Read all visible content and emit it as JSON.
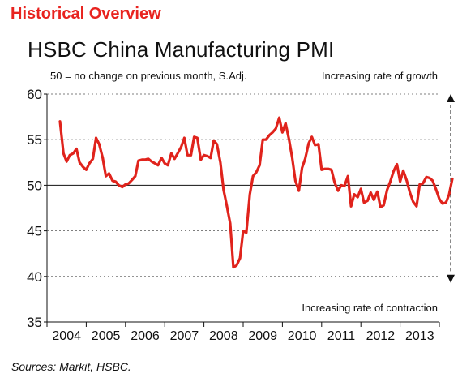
{
  "header": "Historical Overview",
  "chart_data": {
    "type": "line",
    "title": "HSBC China Manufacturing PMI",
    "note_left": "50 = no change on previous month, S.Adj.",
    "note_top_right": "Increasing rate of growth",
    "note_bottom_right": "Increasing rate of contraction",
    "source": "Sources: Markit, HSBC.",
    "ylim": [
      35,
      60
    ],
    "yticks": [
      35,
      40,
      45,
      50,
      55,
      60
    ],
    "xlim": [
      2004.0,
      2014.0
    ],
    "xtick_labels": [
      "2004",
      "2005",
      "2006",
      "2007",
      "2008",
      "2009",
      "2010",
      "2011",
      "2012",
      "2013"
    ],
    "reference_line": 50,
    "colors": {
      "series": "#e0231c",
      "header": "#e8231f"
    },
    "series": [
      {
        "points": [
          [
            2004.33,
            57.0
          ],
          [
            2004.42,
            53.5
          ],
          [
            2004.5,
            52.6
          ],
          [
            2004.58,
            53.3
          ],
          [
            2004.67,
            53.5
          ],
          [
            2004.75,
            54.0
          ],
          [
            2004.83,
            52.5
          ],
          [
            2004.92,
            52.0
          ],
          [
            2005.0,
            51.7
          ],
          [
            2005.08,
            52.4
          ],
          [
            2005.17,
            52.9
          ],
          [
            2005.25,
            55.2
          ],
          [
            2005.33,
            54.5
          ],
          [
            2005.42,
            53.0
          ],
          [
            2005.5,
            51.0
          ],
          [
            2005.58,
            51.3
          ],
          [
            2005.67,
            50.5
          ],
          [
            2005.75,
            50.4
          ],
          [
            2005.83,
            50.0
          ],
          [
            2005.92,
            49.8
          ],
          [
            2006.0,
            50.1
          ],
          [
            2006.08,
            50.2
          ],
          [
            2006.17,
            50.6
          ],
          [
            2006.25,
            51.0
          ],
          [
            2006.33,
            52.7
          ],
          [
            2006.42,
            52.8
          ],
          [
            2006.5,
            52.8
          ],
          [
            2006.58,
            52.9
          ],
          [
            2006.67,
            52.6
          ],
          [
            2006.75,
            52.4
          ],
          [
            2006.83,
            52.2
          ],
          [
            2006.92,
            53.0
          ],
          [
            2007.0,
            52.4
          ],
          [
            2007.08,
            52.2
          ],
          [
            2007.17,
            53.5
          ],
          [
            2007.25,
            52.9
          ],
          [
            2007.33,
            53.5
          ],
          [
            2007.42,
            54.2
          ],
          [
            2007.5,
            55.2
          ],
          [
            2007.58,
            53.3
          ],
          [
            2007.67,
            53.3
          ],
          [
            2007.75,
            55.3
          ],
          [
            2007.83,
            55.2
          ],
          [
            2007.92,
            52.8
          ],
          [
            2008.0,
            53.3
          ],
          [
            2008.08,
            53.2
          ],
          [
            2008.17,
            53.0
          ],
          [
            2008.25,
            54.9
          ],
          [
            2008.33,
            54.5
          ],
          [
            2008.42,
            52.5
          ],
          [
            2008.5,
            49.5
          ],
          [
            2008.58,
            47.8
          ],
          [
            2008.67,
            45.8
          ],
          [
            2008.75,
            41.0
          ],
          [
            2008.83,
            41.2
          ],
          [
            2008.92,
            42.0
          ],
          [
            2009.0,
            45.0
          ],
          [
            2009.08,
            44.8
          ],
          [
            2009.17,
            49.0
          ],
          [
            2009.25,
            51.0
          ],
          [
            2009.33,
            51.4
          ],
          [
            2009.42,
            52.2
          ],
          [
            2009.5,
            55.0
          ],
          [
            2009.58,
            55.0
          ],
          [
            2009.67,
            55.5
          ],
          [
            2009.75,
            55.8
          ],
          [
            2009.83,
            56.2
          ],
          [
            2009.92,
            57.4
          ],
          [
            2010.0,
            55.8
          ],
          [
            2010.08,
            56.8
          ],
          [
            2010.17,
            55.0
          ],
          [
            2010.25,
            53.0
          ],
          [
            2010.33,
            50.5
          ],
          [
            2010.42,
            49.4
          ],
          [
            2010.5,
            51.9
          ],
          [
            2010.58,
            52.9
          ],
          [
            2010.67,
            54.6
          ],
          [
            2010.75,
            55.3
          ],
          [
            2010.83,
            54.4
          ],
          [
            2010.92,
            54.5
          ],
          [
            2011.0,
            51.7
          ],
          [
            2011.08,
            51.8
          ],
          [
            2011.17,
            51.8
          ],
          [
            2011.25,
            51.7
          ],
          [
            2011.33,
            50.3
          ],
          [
            2011.42,
            49.4
          ],
          [
            2011.5,
            50.0
          ],
          [
            2011.58,
            49.9
          ],
          [
            2011.67,
            51.0
          ],
          [
            2011.75,
            47.7
          ],
          [
            2011.83,
            49.0
          ],
          [
            2011.92,
            48.7
          ],
          [
            2012.0,
            49.6
          ],
          [
            2012.08,
            48.1
          ],
          [
            2012.17,
            48.3
          ],
          [
            2012.25,
            49.2
          ],
          [
            2012.33,
            48.4
          ],
          [
            2012.42,
            49.3
          ],
          [
            2012.5,
            47.6
          ],
          [
            2012.58,
            47.8
          ],
          [
            2012.67,
            49.5
          ],
          [
            2012.75,
            50.4
          ],
          [
            2012.83,
            51.5
          ],
          [
            2012.92,
            52.3
          ],
          [
            2013.0,
            50.4
          ],
          [
            2013.08,
            51.6
          ],
          [
            2013.17,
            50.5
          ],
          [
            2013.25,
            49.2
          ],
          [
            2013.33,
            48.2
          ],
          [
            2013.42,
            47.7
          ],
          [
            2013.5,
            50.1
          ],
          [
            2013.58,
            50.2
          ],
          [
            2013.67,
            50.9
          ],
          [
            2013.75,
            50.8
          ],
          [
            2013.83,
            50.5
          ],
          [
            2013.92,
            49.5
          ],
          [
            2014.0,
            48.5
          ],
          [
            2014.08,
            48.0
          ],
          [
            2014.17,
            48.1
          ],
          [
            2014.25,
            49.0
          ],
          [
            2014.33,
            50.7
          ]
        ]
      }
    ]
  }
}
